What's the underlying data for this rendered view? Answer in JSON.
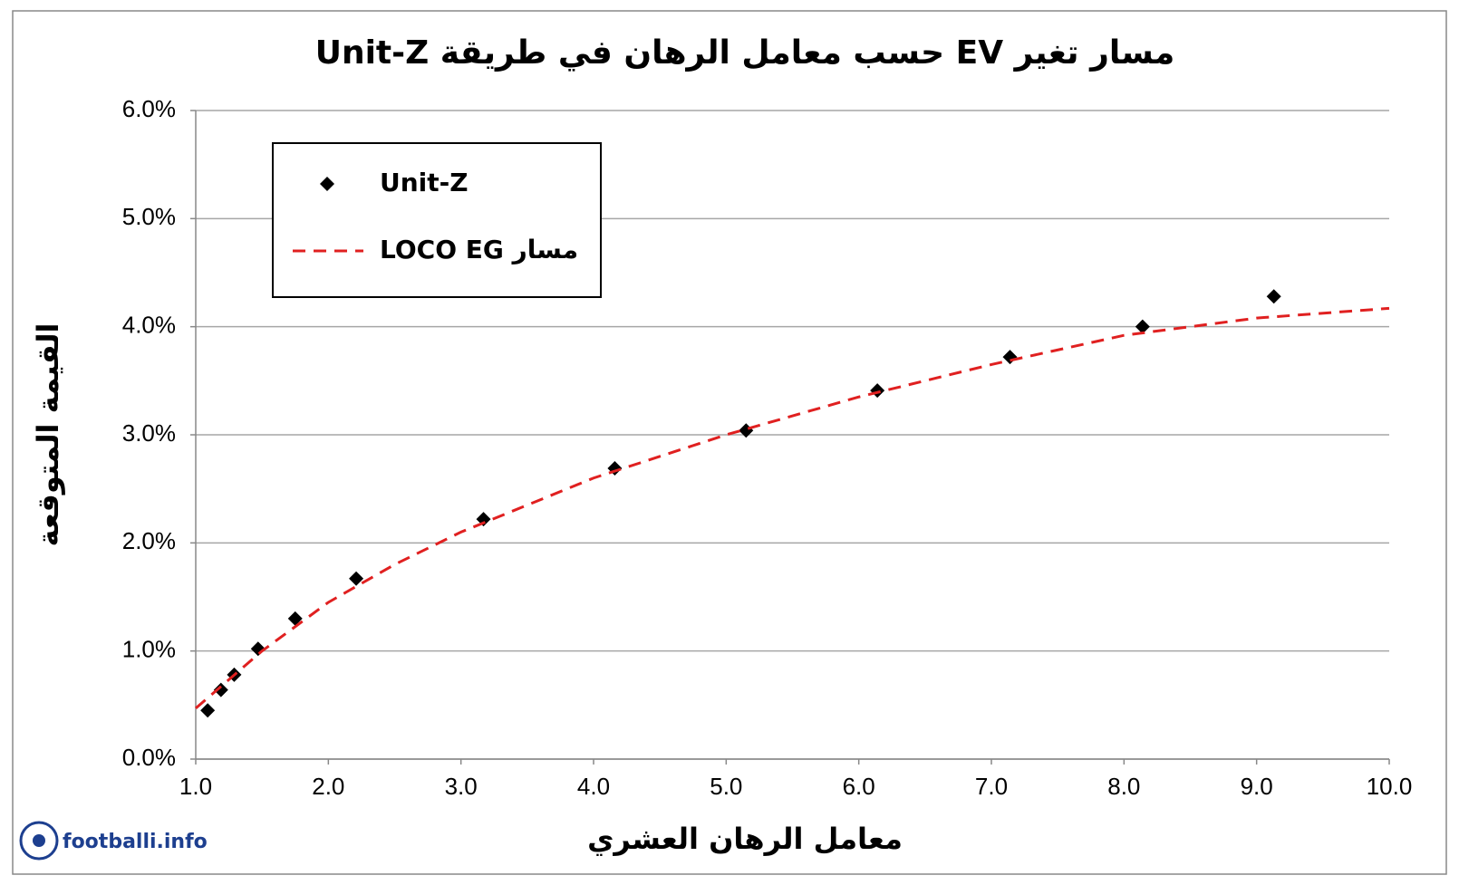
{
  "chart_data": {
    "type": "scatter",
    "title": "مسار تغير EV حسب معامل الرهان في طريقة Unit-Z",
    "x_label": "معامل الرهان العشري",
    "y_label": "القيمة المتوقعة",
    "watermark": "footballi.info",
    "xlim": [
      1,
      10
    ],
    "ylim": [
      0,
      6
    ],
    "xticks": [
      {
        "value": 1,
        "label": "1.0"
      },
      {
        "value": 2,
        "label": "2.0"
      },
      {
        "value": 3,
        "label": "3.0"
      },
      {
        "value": 4,
        "label": "4.0"
      },
      {
        "value": 5,
        "label": "5.0"
      },
      {
        "value": 6,
        "label": "6.0"
      },
      {
        "value": 7,
        "label": "7.0"
      },
      {
        "value": 8,
        "label": "8.0"
      },
      {
        "value": 9,
        "label": "9.0"
      },
      {
        "value": 10,
        "label": "10.0"
      }
    ],
    "yticks": [
      {
        "value": 0,
        "label": "0.0%"
      },
      {
        "value": 1,
        "label": "1.0%"
      },
      {
        "value": 2,
        "label": "2.0%"
      },
      {
        "value": 3,
        "label": "3.0%"
      },
      {
        "value": 4,
        "label": "4.0%"
      },
      {
        "value": 5,
        "label": "5.0%"
      },
      {
        "value": 6,
        "label": "6.0%"
      }
    ],
    "grid": true,
    "legend": "upper-left",
    "series": [
      {
        "name": "Unit-Z",
        "color": "#000000",
        "mode": "markers",
        "x": [
          1.09,
          1.19,
          1.29,
          1.47,
          1.75,
          2.21,
          3.17,
          4.16,
          5.15,
          6.14,
          7.14,
          8.14,
          9.13
        ],
        "values": [
          0.45,
          0.64,
          0.78,
          1.02,
          1.3,
          1.67,
          2.22,
          2.69,
          3.04,
          3.41,
          3.72,
          4.0,
          4.28
        ]
      },
      {
        "name": "مسار LOCO EG",
        "color": "#e02020",
        "mode": "dashed-line",
        "x": [
          1,
          1.5,
          2,
          2.5,
          3,
          4,
          5,
          6,
          7,
          8,
          9,
          10
        ],
        "values": [
          0.47,
          1.0,
          1.45,
          1.8,
          2.1,
          2.6,
          3.0,
          3.35,
          3.65,
          3.92,
          4.08,
          4.17
        ]
      }
    ]
  }
}
